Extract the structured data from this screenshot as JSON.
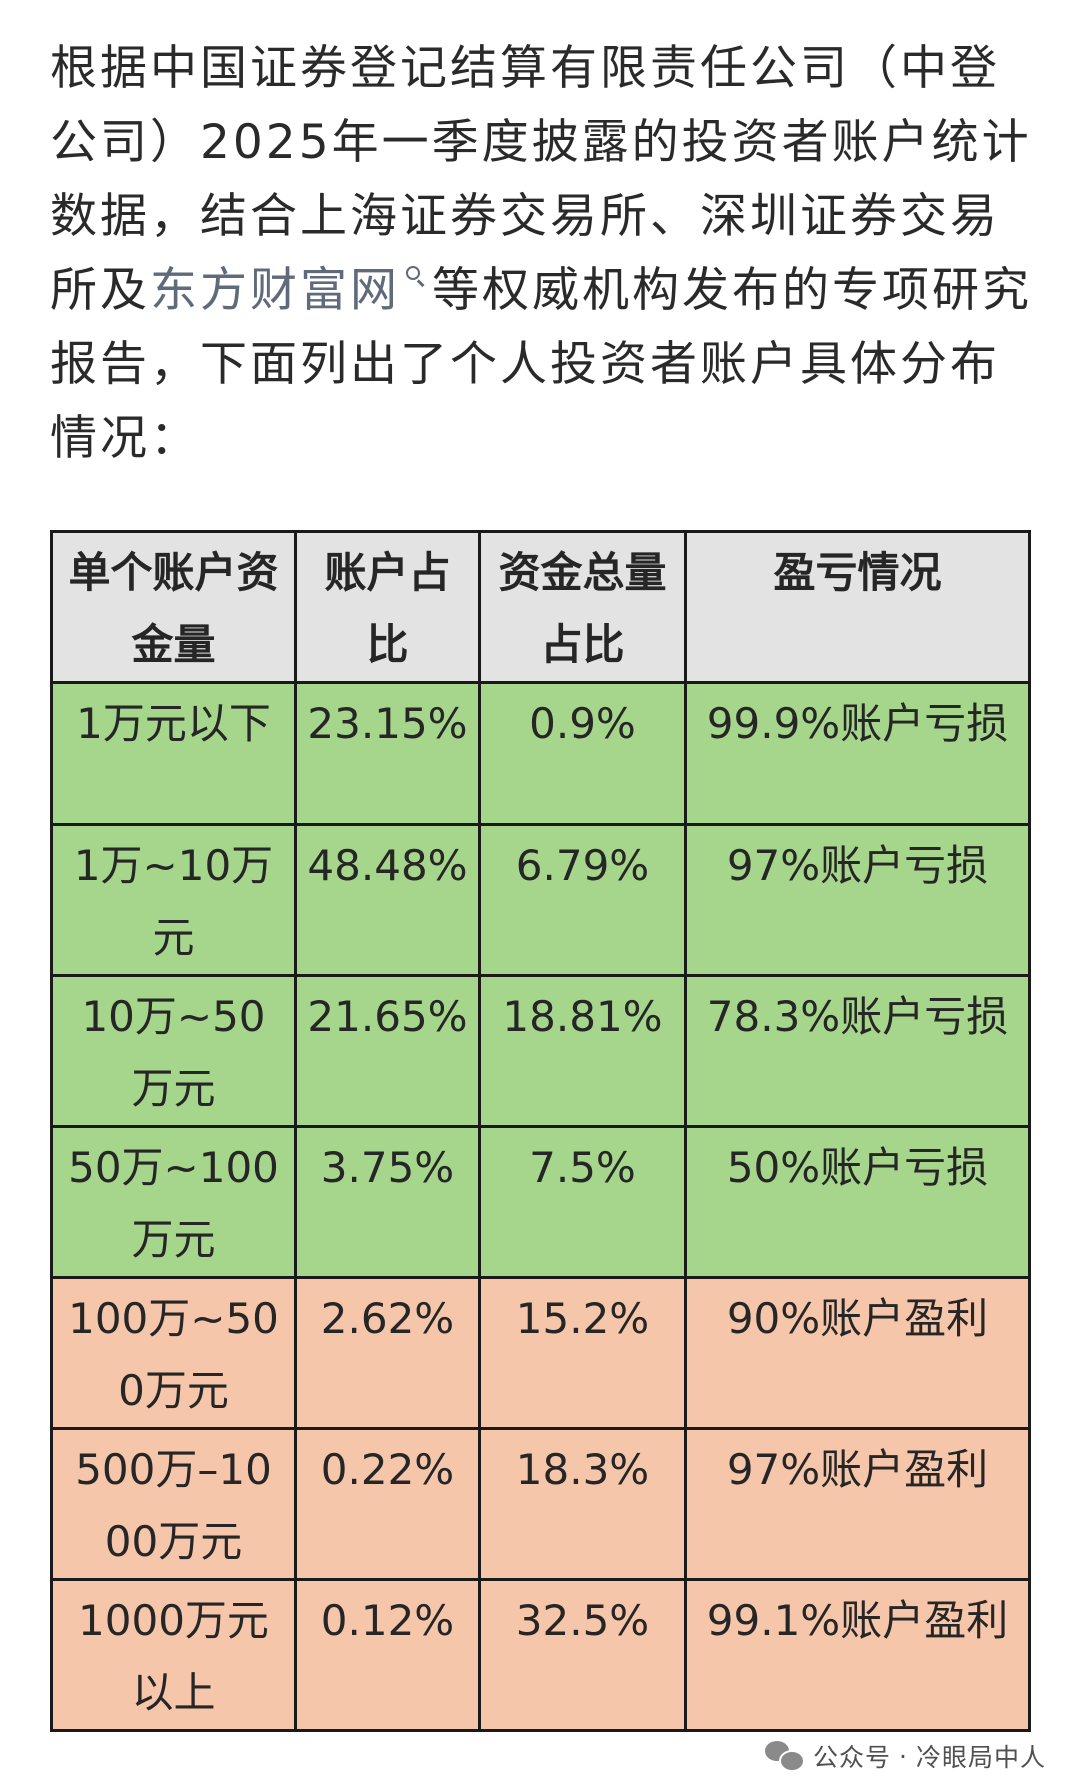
{
  "intro": {
    "before_link": "根据中国证券登记结算有限责任公司（中登公司）2025年一季度披露的投资者账户统计数据，结合上海证券交易所、深圳证券交易所及",
    "link_text": "东方财富网",
    "after_link": "等权威机构发布的专项研究报告，下面列出了个人投资者账户具体分布情况："
  },
  "table": {
    "headers": [
      "单个账户资金量",
      "账户占比",
      "资金总量占比",
      "盈亏情况"
    ],
    "rows": [
      {
        "tier": "1万元以下",
        "account_share": "23.15%",
        "fund_share": "0.9%",
        "outcome": "99.9%账户亏损",
        "status": "loss"
      },
      {
        "tier": "1万~10万元",
        "account_share": "48.48%",
        "fund_share": "6.79%",
        "outcome": "97%账户亏损",
        "status": "loss"
      },
      {
        "tier": "10万~50万元",
        "account_share": "21.65%",
        "fund_share": "18.81%",
        "outcome": "78.3%账户亏损",
        "status": "loss"
      },
      {
        "tier": "50万~100万元",
        "account_share": "3.75%",
        "fund_share": "7.5%",
        "outcome": "50%账户亏损",
        "status": "loss"
      },
      {
        "tier": "100万~500万元",
        "account_share": "2.62%",
        "fund_share": "15.2%",
        "outcome": "90%账户盈利",
        "status": "gain"
      },
      {
        "tier": "500万–1000万元",
        "account_share": "0.22%",
        "fund_share": "18.3%",
        "outcome": "97%账户盈利",
        "status": "gain"
      },
      {
        "tier": "1000万元以上",
        "account_share": "0.12%",
        "fund_share": "32.5%",
        "outcome": "99.1%账户盈利",
        "status": "gain"
      }
    ],
    "colors": {
      "loss": "#a6d58c",
      "gain": "#f6c6ab",
      "header": "#e3e3e3"
    }
  },
  "footer": {
    "icon": "wechat-icon",
    "label": "公众号",
    "separator": "·",
    "account": "冷眼局中人"
  }
}
